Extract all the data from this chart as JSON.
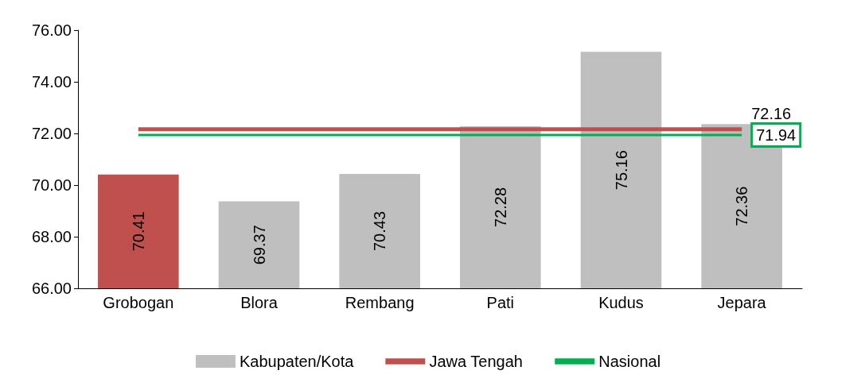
{
  "chart_data": {
    "type": "bar",
    "categories": [
      "Grobogan",
      "Blora",
      "Rembang",
      "Pati",
      "Kudus",
      "Jepara"
    ],
    "series": [
      {
        "name": "Kabupaten/Kota",
        "color": "#bfbfbf",
        "colors": [
          "#c0504d",
          "#bfbfbf",
          "#bfbfbf",
          "#bfbfbf",
          "#bfbfbf",
          "#bfbfbf"
        ],
        "values": [
          70.41,
          69.37,
          70.43,
          72.28,
          75.16,
          72.36
        ],
        "value_labels": [
          "70.41",
          "69.37",
          "70.43",
          "72.28",
          "75.16",
          "72.36"
        ]
      },
      {
        "name": "Jawa Tengah",
        "type": "line",
        "color": "#c0504d",
        "values": [
          72.16,
          72.16,
          72.16,
          72.16,
          72.16,
          72.16
        ],
        "value_labels": [
          null,
          null,
          null,
          null,
          null,
          "72.16"
        ]
      },
      {
        "name": "Nasional",
        "type": "line",
        "color": "#00b050",
        "values": [
          71.94,
          71.94,
          71.94,
          71.94,
          71.94,
          71.94
        ],
        "value_labels": [
          null,
          null,
          null,
          null,
          null,
          "71.94"
        ]
      }
    ],
    "ylim": [
      66,
      76
    ],
    "yticks": [
      {
        "value": 66,
        "label": "66.00"
      },
      {
        "value": 68,
        "label": "68.00"
      },
      {
        "value": 70,
        "label": "70.00"
      },
      {
        "value": 72,
        "label": "72.00"
      },
      {
        "value": 74,
        "label": "74.00"
      },
      {
        "value": 76,
        "label": "76.00"
      }
    ],
    "grid": false,
    "legend": "bottom"
  }
}
